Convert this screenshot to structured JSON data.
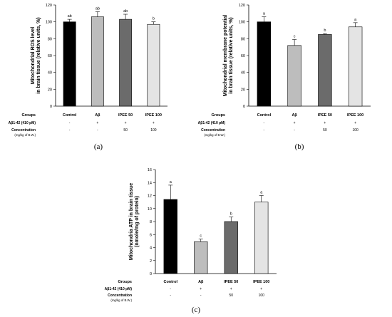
{
  "chart_data": [
    {
      "type": "bar",
      "panel_label": "(a)",
      "ylabel_line1": "Mitochondrial ROS level",
      "ylabel_line2": "in brain tissue (relative units, %)",
      "ylim": [
        0,
        120
      ],
      "yticks": [
        "0",
        "20",
        "40",
        "60",
        "80",
        "100",
        "120"
      ],
      "categories": [
        "Control",
        "Aβ",
        "IPEE 50",
        "IPEE 100"
      ],
      "values": [
        100,
        106,
        103,
        97
      ],
      "errors": [
        3,
        6,
        6,
        3
      ],
      "letters": [
        "ab",
        "ab",
        "ab",
        "b"
      ],
      "colors": [
        "#000000",
        "#bdbdbd",
        "#6b6b6b",
        "#e4e4e4"
      ],
      "table": {
        "groups_label": "Groups",
        "abeta_label": "Aβ1-42 (410 pM)",
        "abeta_values": [
          "-",
          "+",
          "+",
          "+"
        ],
        "conc_label": "Concentration",
        "conc_unit": "(mg/kg of B.W.)",
        "conc_values": [
          "-",
          "-",
          "50",
          "100"
        ]
      }
    },
    {
      "type": "bar",
      "panel_label": "(b)",
      "ylabel_line1": "Mitochondrial membrane potential",
      "ylabel_line2": "in brain tissue (relative units, %)",
      "ylim": [
        0,
        120
      ],
      "yticks": [
        "0",
        "20",
        "40",
        "60",
        "80",
        "100",
        "120"
      ],
      "categories": [
        "Control",
        "Aβ",
        "IPEE 50",
        "IPEE 100"
      ],
      "values": [
        100,
        72,
        85,
        94
      ],
      "errors": [
        6,
        7,
        1,
        5
      ],
      "letters": [
        "a",
        "c",
        "b",
        "a"
      ],
      "colors": [
        "#000000",
        "#bdbdbd",
        "#6b6b6b",
        "#e4e4e4"
      ],
      "table": {
        "groups_label": "Groups",
        "abeta_label": "Aβ1-42 (410 pM)",
        "abeta_values": [
          "-",
          "+",
          "+",
          "+"
        ],
        "conc_label": "Concentration",
        "conc_unit": "(mg/kg of B.W.)",
        "conc_values": [
          "-",
          "-",
          "50",
          "100"
        ]
      }
    },
    {
      "type": "bar",
      "panel_label": "(c)",
      "ylabel_line1": "Mitochondria ATP in brain tissue",
      "ylabel_line2": "(nmole/mg of protein)",
      "ylim": [
        0,
        16
      ],
      "yticks": [
        "0",
        "2",
        "4",
        "6",
        "8",
        "10",
        "12",
        "14",
        "16"
      ],
      "categories": [
        "Control",
        "Aβ",
        "IPEE 50",
        "IPEE 100"
      ],
      "values": [
        11.4,
        4.9,
        8.0,
        11.0
      ],
      "errors": [
        2.2,
        0.4,
        0.7,
        1.0
      ],
      "letters": [
        "a",
        "c",
        "b",
        "a"
      ],
      "colors": [
        "#000000",
        "#bdbdbd",
        "#6b6b6b",
        "#e4e4e4"
      ],
      "table": {
        "groups_label": "Groups",
        "abeta_label": "Aβ1-42 (410 pM)",
        "abeta_values": [
          "-",
          "+",
          "+",
          "+"
        ],
        "conc_label": "Concentration",
        "conc_unit": "(mg/kg of B.W.)",
        "conc_values": [
          "-",
          "-",
          "50",
          "100"
        ]
      }
    }
  ]
}
